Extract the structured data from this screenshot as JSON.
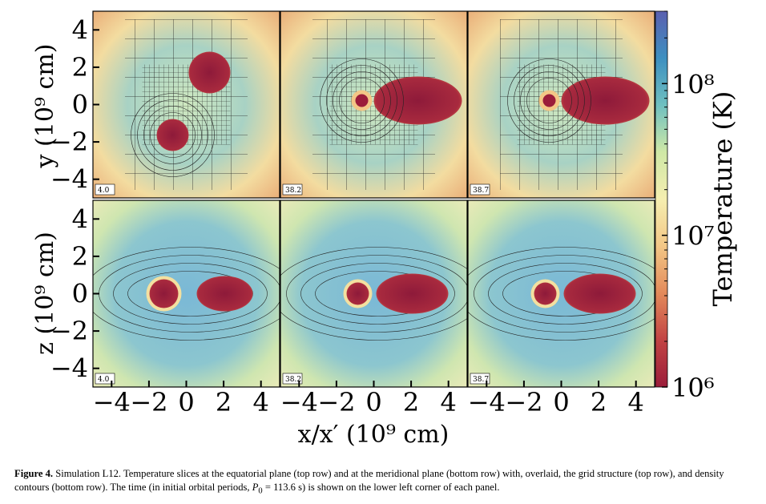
{
  "figure": {
    "panels": [
      {
        "row": "top",
        "time": "4.0"
      },
      {
        "row": "top",
        "time": "38.2"
      },
      {
        "row": "top",
        "time": "38.7"
      },
      {
        "row": "bottom",
        "time": "4.0"
      },
      {
        "row": "bottom",
        "time": "38.2"
      },
      {
        "row": "bottom",
        "time": "38.7"
      }
    ],
    "y_axis_top": {
      "label": "y (10⁹ cm)",
      "ticks": [
        "4",
        "2",
        "0",
        "−2",
        "−4"
      ]
    },
    "y_axis_bottom": {
      "label": "z (10⁹ cm)",
      "ticks": [
        "4",
        "2",
        "0",
        "−2",
        "−4"
      ]
    },
    "x_axis": {
      "label": "x/x′ (10⁹ cm)",
      "ticks": [
        "−4",
        "−2",
        "0",
        "2",
        "4"
      ]
    },
    "colorbar": {
      "label": "Temperature (K)",
      "ticks": [
        "10⁸",
        "10⁷",
        "10⁶"
      ],
      "scale": "log",
      "range": [
        1000000,
        300000000
      ],
      "colors": [
        "#5a5fb0",
        "#3d8fc0",
        "#6fc0c0",
        "#cfe8a6",
        "#f5eeb0",
        "#f3c786",
        "#e38a5a",
        "#c24444",
        "#9b1d3a"
      ]
    }
  },
  "caption": {
    "label": "Figure 4.",
    "text": "Simulation L12. Temperature slices at the equatorial plane (top row) and at the meridional plane (bottom row) with, overlaid, the grid structure (top row), and density contours (bottom row). The time (in initial orbital periods, ",
    "p0": "P",
    "p0_sub": "0",
    "p0_tail": " = 113.6 s) is shown on the lower left corner of each panel."
  }
}
